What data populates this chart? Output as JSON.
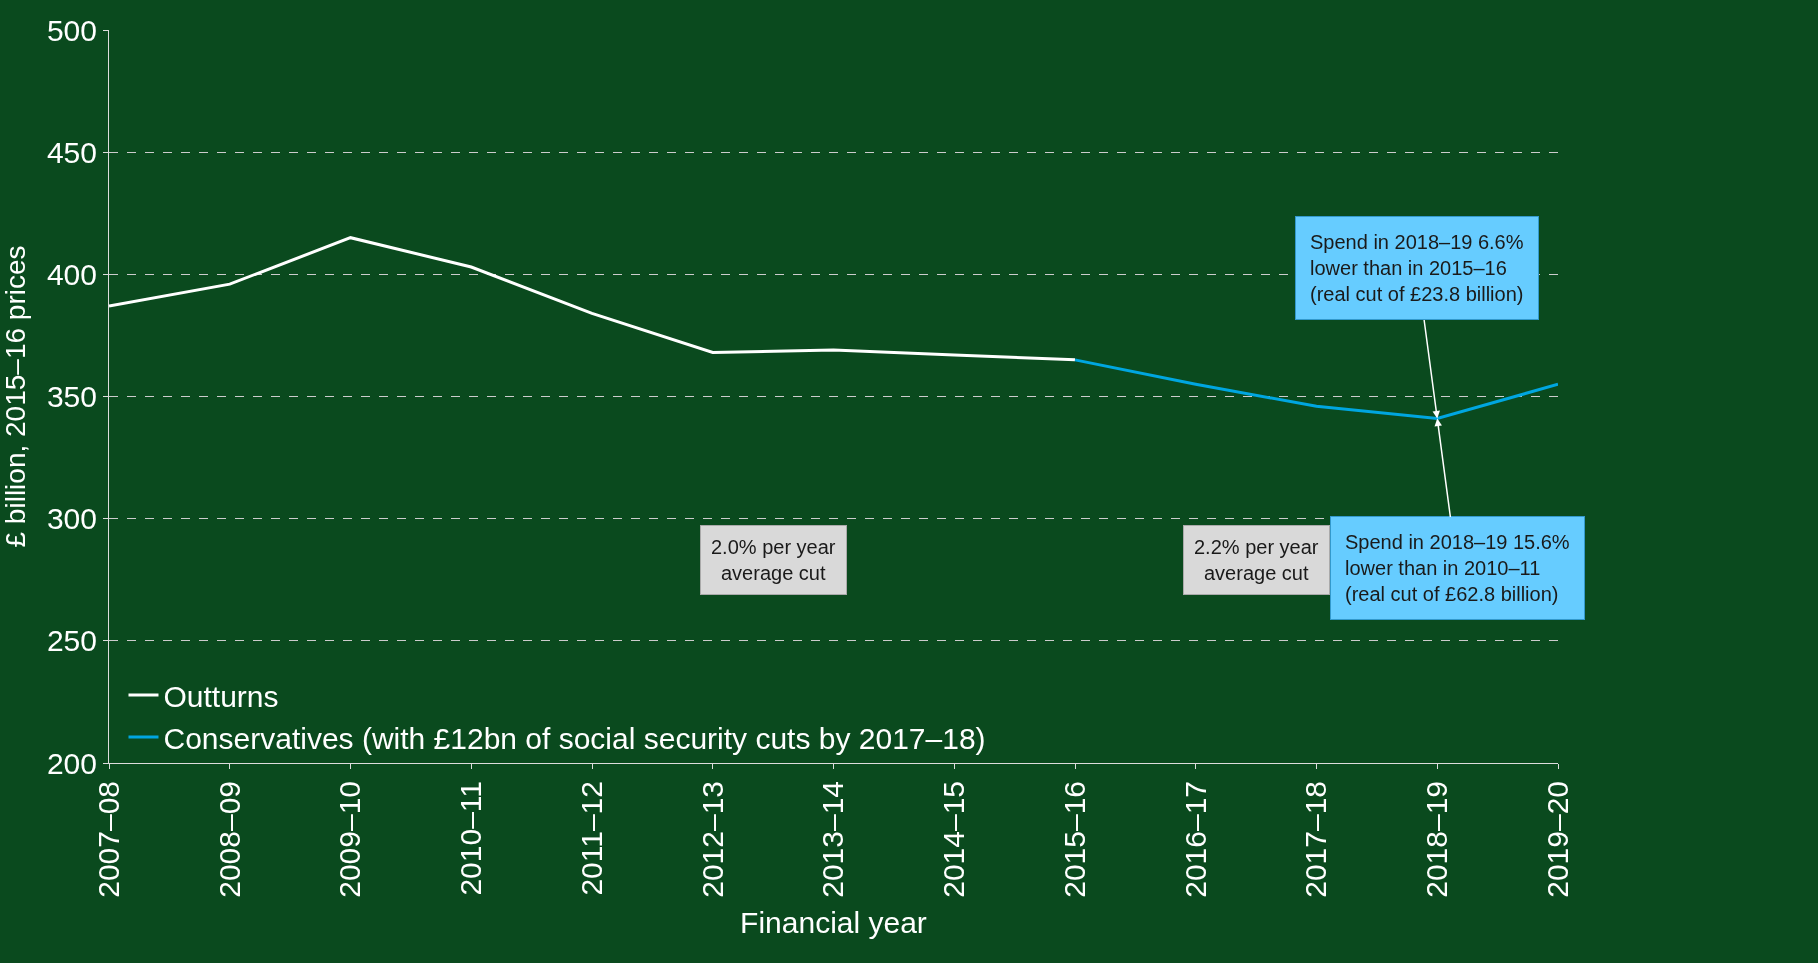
{
  "chart_data": {
    "type": "line",
    "xlabel": "Financial year",
    "ylabel": "£ billion, 2015–16 prices",
    "categories": [
      "2007–08",
      "2008–09",
      "2009–10",
      "2010–11",
      "2011–12",
      "2012–13",
      "2013–14",
      "2014–15",
      "2015–16",
      "2016–17",
      "2017–18",
      "2018–19",
      "2019–20"
    ],
    "series": [
      {
        "name": "Outturns",
        "color": "#ffffff",
        "values": [
          387,
          396,
          415,
          403,
          384,
          368,
          369,
          367,
          365,
          null,
          null,
          null,
          null
        ]
      },
      {
        "name": "Conservatives (with £12bn of social security cuts by 2017–18)",
        "color": "#00a6e0",
        "values": [
          null,
          null,
          null,
          null,
          null,
          null,
          null,
          null,
          365,
          355,
          346,
          341,
          355
        ]
      }
    ],
    "ylim": [
      200,
      500
    ],
    "yticks": [
      200,
      250,
      300,
      350,
      400,
      450,
      500
    ],
    "grid": "y",
    "legend": "bottom left",
    "line_style": "solid",
    "marker": "none",
    "annotations": [
      "2.0% per year average cut",
      "2.2% per year average cut",
      {
        "text": "Spend in 2018–19 6.6% lower than in 2015–16 (real cut of £23.8 billion)",
        "x": "2018–19",
        "y": 341
      },
      {
        "text": "Spend in 2018–19 15.6% lower than in 2010–11 (real cut of £62.8 billion)",
        "x": "2018–19",
        "y": 341
      }
    ]
  }
}
